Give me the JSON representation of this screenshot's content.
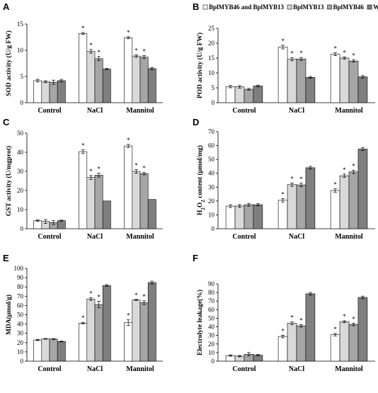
{
  "legend": {
    "entries": [
      {
        "name": "BplMYB46 and BplMYB13",
        "color": "#ffffff"
      },
      {
        "name": "BplMYB13",
        "color": "#d9d9d9"
      },
      {
        "name": "BplMYB46",
        "color": "#a6a6a6"
      },
      {
        "name": "WT",
        "color": "#7f7f7f"
      }
    ]
  },
  "chart_data": [
    {
      "panel": "A",
      "type": "bar",
      "ylabel": "SOD activity (U/g FW)",
      "ylim": [
        0,
        15
      ],
      "yticks": [
        0,
        5,
        10,
        15
      ],
      "categories": [
        "Control",
        "NaCl",
        "Mannitol"
      ],
      "series": [
        {
          "name": "BplMYB46 and BplMYB13",
          "values": [
            4.2,
            13.2,
            12.4
          ],
          "errors": [
            0.25,
            0.2,
            0.2
          ],
          "stars": [
            false,
            true,
            true
          ]
        },
        {
          "name": "BplMYB13",
          "values": [
            4.0,
            9.8,
            8.9
          ],
          "errors": [
            0.2,
            0.35,
            0.25
          ],
          "stars": [
            false,
            true,
            true
          ]
        },
        {
          "name": "BplMYB46",
          "values": [
            3.9,
            8.4,
            8.7
          ],
          "errors": [
            0.4,
            0.4,
            0.3
          ],
          "stars": [
            false,
            true,
            true
          ]
        },
        {
          "name": "WT",
          "values": [
            4.2,
            6.4,
            6.5
          ],
          "errors": [
            0.25,
            0.15,
            0.2
          ],
          "stars": [
            false,
            false,
            false
          ]
        }
      ]
    },
    {
      "panel": "B",
      "type": "bar",
      "ylabel": "POD activity (U/g FW)",
      "ylim": [
        0,
        25
      ],
      "yticks": [
        0,
        5,
        10,
        15,
        20,
        25
      ],
      "categories": [
        "Control",
        "NaCl",
        "Mannitol"
      ],
      "series": [
        {
          "name": "BplMYB46 and BplMYB13",
          "values": [
            5.4,
            18.7,
            16.3
          ],
          "errors": [
            0.4,
            0.6,
            0.5
          ],
          "stars": [
            false,
            true,
            true
          ]
        },
        {
          "name": "BplMYB13",
          "values": [
            5.3,
            14.6,
            15.0
          ],
          "errors": [
            0.4,
            0.5,
            0.4
          ],
          "stars": [
            false,
            true,
            true
          ]
        },
        {
          "name": "BplMYB46",
          "values": [
            4.5,
            14.7,
            14.0
          ],
          "errors": [
            0.3,
            0.5,
            0.4
          ],
          "stars": [
            false,
            true,
            true
          ]
        },
        {
          "name": "WT",
          "values": [
            5.6,
            8.5,
            8.7
          ],
          "errors": [
            0.3,
            0.3,
            0.4
          ],
          "stars": [
            false,
            false,
            false
          ]
        }
      ]
    },
    {
      "panel": "C",
      "type": "bar",
      "ylabel": "GST activity (U/mgprot)",
      "ylim": [
        0,
        50
      ],
      "yticks": [
        0,
        10,
        20,
        30,
        40,
        50
      ],
      "categories": [
        "Control",
        "NaCl",
        "Mannitol"
      ],
      "series": [
        {
          "name": "BplMYB46 and BplMYB13",
          "values": [
            4.2,
            40.3,
            43.3
          ],
          "errors": [
            0.4,
            1.0,
            0.8
          ],
          "stars": [
            false,
            true,
            true
          ]
        },
        {
          "name": "BplMYB13",
          "values": [
            3.8,
            26.8,
            30.0
          ],
          "errors": [
            1.0,
            1.0,
            1.0
          ],
          "stars": [
            false,
            true,
            true
          ]
        },
        {
          "name": "BplMYB46",
          "values": [
            3.2,
            28.0,
            28.8
          ],
          "errors": [
            1.0,
            1.0,
            0.6
          ],
          "stars": [
            false,
            true,
            true
          ]
        },
        {
          "name": "WT",
          "values": [
            4.2,
            14.5,
            15.3
          ],
          "errors": [
            0.3,
            0,
            0
          ],
          "stars": [
            false,
            false,
            false
          ]
        }
      ]
    },
    {
      "panel": "D",
      "type": "bar",
      "ylabel_main": "H",
      "ylabel_sub": "2",
      "ylabel_mid": "O",
      "ylabel_rest": " content (μmol/mg)",
      "ylim": [
        0,
        70
      ],
      "yticks": [
        0,
        10,
        20,
        30,
        40,
        50,
        60,
        70
      ],
      "categories": [
        "Control",
        "NaCl",
        "Mannitol"
      ],
      "series": [
        {
          "name": "BplMYB46 and BplMYB13",
          "values": [
            16.3,
            20.5,
            27.6
          ],
          "errors": [
            1.0,
            1.2,
            1.2
          ],
          "stars": [
            false,
            true,
            true
          ]
        },
        {
          "name": "BplMYB13",
          "values": [
            16.4,
            31.8,
            38.2
          ],
          "errors": [
            1.0,
            1.2,
            1.2
          ],
          "stars": [
            false,
            true,
            true
          ]
        },
        {
          "name": "BplMYB46",
          "values": [
            17.3,
            31.6,
            41.0
          ],
          "errors": [
            1.0,
            1.2,
            1.2
          ],
          "stars": [
            false,
            true,
            true
          ]
        },
        {
          "name": "WT",
          "values": [
            17.3,
            44.0,
            57.5
          ],
          "errors": [
            0.8,
            1.0,
            1.0
          ],
          "stars": [
            false,
            false,
            false
          ]
        }
      ]
    },
    {
      "panel": "E",
      "type": "bar",
      "ylabel": "MDA(μmol/g)",
      "ylim": [
        0,
        100
      ],
      "yticks": [
        0,
        10,
        20,
        30,
        40,
        50,
        60,
        70,
        80,
        90,
        100
      ],
      "categories": [
        "Control",
        "NaCl",
        "Mannitol"
      ],
      "series": [
        {
          "name": "BplMYB46 and BplMYB13",
          "values": [
            22.8,
            41.0,
            41.5
          ],
          "errors": [
            0.6,
            0.8,
            3.0
          ],
          "stars": [
            false,
            true,
            true
          ]
        },
        {
          "name": "BplMYB13",
          "values": [
            24.0,
            67.0,
            66.0
          ],
          "errors": [
            0.4,
            1.5,
            0.6
          ],
          "stars": [
            false,
            true,
            true
          ]
        },
        {
          "name": "BplMYB46",
          "values": [
            23.8,
            61.0,
            63.0
          ],
          "errors": [
            0.4,
            3.5,
            2.0
          ],
          "stars": [
            false,
            true,
            true
          ]
        },
        {
          "name": "WT",
          "values": [
            21.2,
            81.5,
            84.7
          ],
          "errors": [
            0.4,
            1.0,
            1.5
          ],
          "stars": [
            false,
            false,
            false
          ]
        }
      ]
    },
    {
      "panel": "F",
      "type": "bar",
      "ylabel": "Electrolyte leakage(%)",
      "ylim": [
        0,
        90
      ],
      "yticks": [
        0,
        10,
        20,
        30,
        40,
        50,
        60,
        70,
        80,
        90
      ],
      "categories": [
        "Control",
        "NaCl",
        "Mannitol"
      ],
      "series": [
        {
          "name": "BplMYB46 and BplMYB13",
          "values": [
            6.5,
            28.8,
            30.8
          ],
          "errors": [
            0.8,
            1.5,
            1.5
          ],
          "stars": [
            false,
            true,
            true
          ]
        },
        {
          "name": "BplMYB13",
          "values": [
            5.8,
            44.2,
            46.0
          ],
          "errors": [
            0.8,
            1.5,
            1.2
          ],
          "stars": [
            false,
            true,
            true
          ]
        },
        {
          "name": "BplMYB46",
          "values": [
            8.0,
            41.2,
            42.8
          ],
          "errors": [
            2.0,
            1.5,
            1.5
          ],
          "stars": [
            false,
            true,
            true
          ]
        },
        {
          "name": "WT",
          "values": [
            7.0,
            78.5,
            74.3
          ],
          "errors": [
            0.8,
            1.5,
            1.5
          ],
          "stars": [
            false,
            false,
            false
          ]
        }
      ]
    }
  ]
}
